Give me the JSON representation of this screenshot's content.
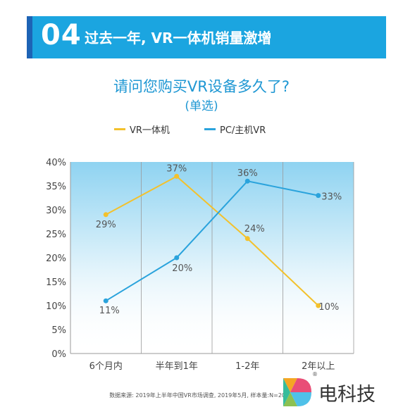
{
  "header": {
    "number": "04",
    "title": "过去一年, VR一体机销量激增",
    "bg_color": "#1ba5e0",
    "accent_color": "#1d63b5"
  },
  "question": {
    "title": "请问您购买VR设备多久了?",
    "subtitle": "(单选)"
  },
  "legend": {
    "items": [
      "VR一体机",
      "PC/主机VR"
    ]
  },
  "source": "数据来源: 2019年上半年中国VR市场调查, 2019年5月, 样本量:N=200+",
  "logo": {
    "text": "电科技",
    "mark": "®"
  },
  "chart_data": {
    "type": "line",
    "categories": [
      "6个月内",
      "半年到1年",
      "1-2年",
      "2年以上"
    ],
    "ylim": [
      0,
      40
    ],
    "yticks": [
      "0%",
      "5%",
      "10%",
      "15%",
      "20%",
      "25%",
      "30%",
      "35%",
      "40%"
    ],
    "grid": "vertical",
    "legend_position": "top",
    "series": [
      {
        "name": "VR一体机",
        "values": [
          29,
          37,
          24,
          10
        ],
        "labels": [
          "29%",
          "37%",
          "24%",
          "10%"
        ],
        "color": "#f3c12c"
      },
      {
        "name": "PC/主机VR",
        "values": [
          11,
          20,
          36,
          33
        ],
        "labels": [
          "11%",
          "20%",
          "36%",
          "33%"
        ],
        "color": "#2aa3dc"
      }
    ]
  }
}
